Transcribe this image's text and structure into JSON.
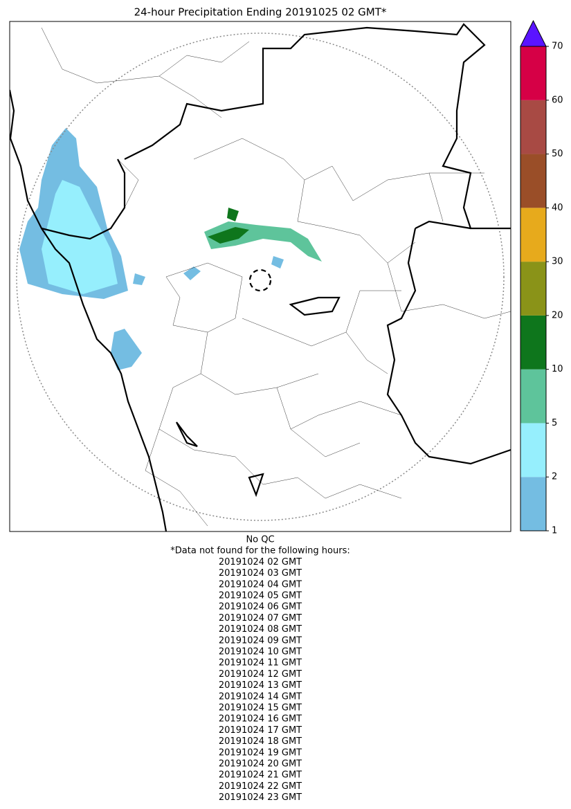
{
  "title": "24-hour Precipitation Ending 20191025 02 GMT*",
  "colorbar": {
    "ticks": [
      1,
      2,
      5,
      10,
      20,
      30,
      40,
      50,
      60,
      70
    ],
    "colors": [
      "#74bde2",
      "#96effd",
      "#5ec49b",
      "#0e761c",
      "#8a9318",
      "#e7aa1c",
      "#9a4e28",
      "#a84a44",
      "#d60046"
    ],
    "extend_color": "#5a14ff"
  },
  "notes": [
    "No QC",
    "*Data not found for the following hours:",
    "20191024 02 GMT",
    "20191024 03 GMT",
    "20191024 04 GMT",
    "20191024 05 GMT",
    "20191024 06 GMT",
    "20191024 07 GMT",
    "20191024 08 GMT",
    "20191024 09 GMT",
    "20191024 10 GMT",
    "20191024 11 GMT",
    "20191024 12 GMT",
    "20191024 13 GMT",
    "20191024 14 GMT",
    "20191024 15 GMT",
    "20191024 16 GMT",
    "20191024 17 GMT",
    "20191024 18 GMT",
    "20191024 19 GMT",
    "20191024 20 GMT",
    "20191024 21 GMT",
    "20191024 22 GMT",
    "20191024 23 GMT"
  ]
}
